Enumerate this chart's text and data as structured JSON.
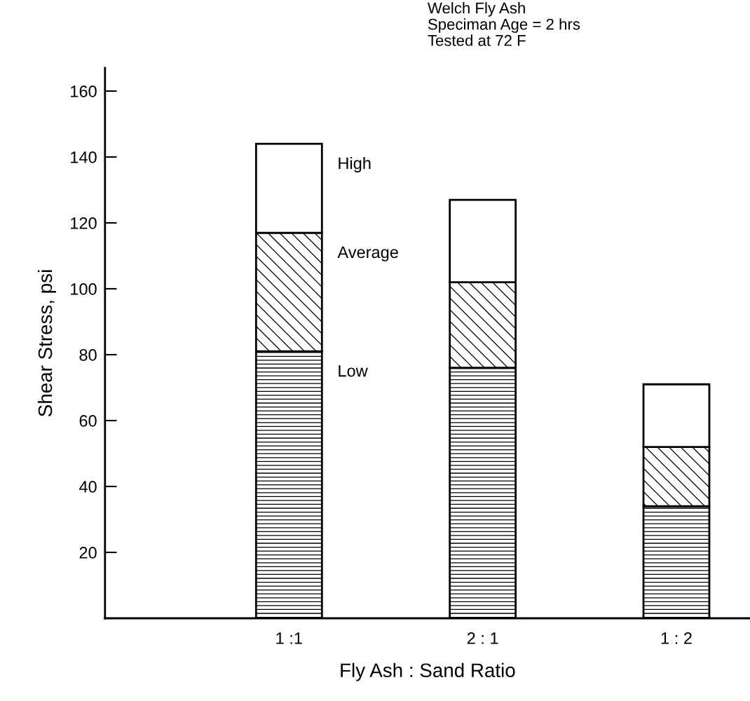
{
  "chart_data": {
    "type": "bar",
    "stacked": true,
    "xlabel": "Fly Ash : Sand Ratio",
    "ylabel": "Shear Stress, psi",
    "categories": [
      "1 :1",
      "2 : 1",
      "1 : 2"
    ],
    "series": [
      {
        "name": "Low",
        "color": "#000000",
        "values": [
          81,
          76,
          34
        ]
      },
      {
        "name": "Average",
        "color": "#000000",
        "values": [
          36,
          26,
          18
        ]
      },
      {
        "name": "High",
        "color": "#ffffff",
        "values": [
          27,
          25,
          19
        ]
      }
    ],
    "ylim": [
      0,
      167
    ],
    "yticks": [
      20,
      40,
      60,
      80,
      100,
      120,
      140,
      160
    ],
    "grid": false,
    "legend": false,
    "annotations": [
      "Welch Fly Ash\nSpeciman Age = 2 hrs\nTested at 72 F"
    ]
  }
}
